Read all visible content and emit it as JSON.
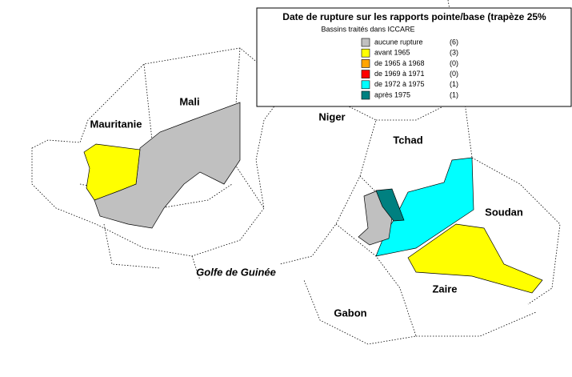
{
  "legend": {
    "title": "Date de rupture sur les rapports pointe/base (trapèze 25%",
    "subtitle": "Bassins traités dans ICCARE",
    "items": [
      {
        "label": "aucune rupture",
        "count": "(6)",
        "color": "#c0c0c0"
      },
      {
        "label": "avant 1965",
        "count": "(3)",
        "color": "#ffff00"
      },
      {
        "label": "de 1965 à 1968",
        "count": "(0)",
        "color": "#ffa500"
      },
      {
        "label": "de 1969 à 1971",
        "count": "(0)",
        "color": "#ff0000"
      },
      {
        "label": "de 1972 à 1975",
        "count": "(1)",
        "color": "#00ffff"
      },
      {
        "label": "après 1975",
        "count": "(1)",
        "color": "#008080"
      }
    ]
  },
  "labels": {
    "mali": "Mali",
    "mauritanie": "Mauritanie",
    "niger": "Niger",
    "tchad": "Tchad",
    "soudan": "Soudan",
    "zaire": "Zaire",
    "gabon": "Gabon",
    "golfe": "Golfe de Guinée"
  }
}
